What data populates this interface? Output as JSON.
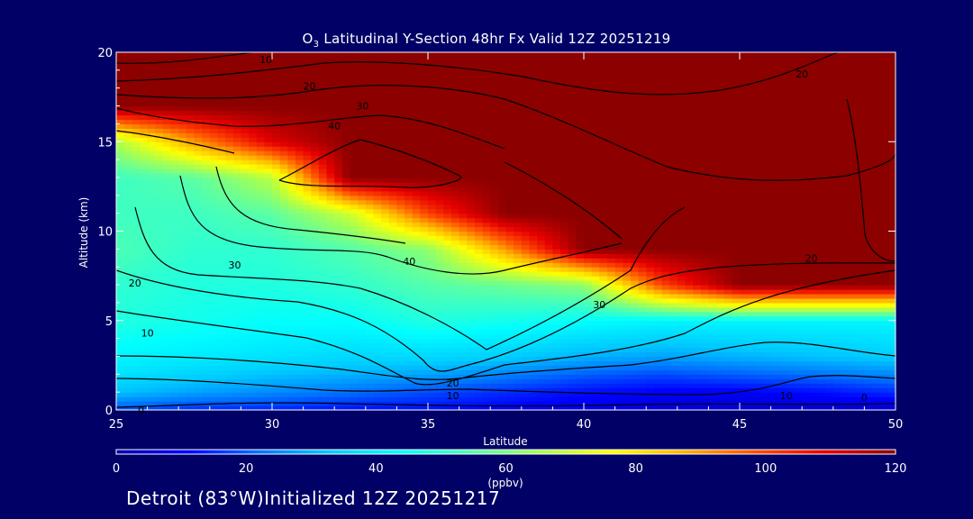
{
  "title": {
    "prefix": "O",
    "subscript": "3",
    "rest": " Latitudinal Y-Section 48hr  Fx Valid 12Z 20251219"
  },
  "caption": "Detroit (83°W)Initialized 12Z 20251217",
  "chart_data": {
    "type": "heatmap",
    "xlabel": "Latitude",
    "ylabel": "Altitude (km)",
    "xlim": [
      25,
      50
    ],
    "ylim": [
      0,
      20
    ],
    "xticks": [
      "25",
      "30",
      "35",
      "40",
      "45",
      "50"
    ],
    "yticks": [
      "0",
      "5",
      "10",
      "15",
      "20"
    ],
    "colorbar": {
      "label": "(ppbv)",
      "range": [
        0,
        120
      ],
      "ticks": [
        "0",
        "20",
        "40",
        "60",
        "80",
        "100",
        "120"
      ],
      "colors": [
        "#0000aa",
        "#0000ff",
        "#0070ff",
        "#00c8ff",
        "#00ffff",
        "#50ffb0",
        "#a8ff50",
        "#ffff00",
        "#ffb400",
        "#ff5000",
        "#e60000",
        "#8c0000"
      ]
    },
    "background_color": "#000066",
    "field": {
      "x": [
        25,
        27.5,
        30,
        32.5,
        35,
        37.5,
        40,
        42.5,
        45,
        47.5,
        50
      ],
      "y": [
        0,
        1,
        2,
        3,
        5,
        7,
        9,
        11,
        13,
        15,
        17,
        20
      ],
      "z": [
        [
          18,
          15,
          14,
          12,
          12,
          10,
          8,
          6,
          5,
          5,
          5
        ],
        [
          32,
          28,
          25,
          22,
          18,
          15,
          12,
          10,
          10,
          12,
          15
        ],
        [
          38,
          35,
          32,
          30,
          28,
          24,
          20,
          18,
          20,
          22,
          25
        ],
        [
          42,
          40,
          38,
          36,
          36,
          34,
          30,
          28,
          30,
          32,
          34
        ],
        [
          48,
          46,
          44,
          44,
          48,
          46,
          44,
          42,
          42,
          42,
          42
        ],
        [
          50,
          48,
          48,
          50,
          55,
          58,
          62,
          100,
          120,
          120,
          120
        ],
        [
          54,
          50,
          50,
          55,
          62,
          90,
          120,
          120,
          120,
          120,
          120
        ],
        [
          52,
          52,
          56,
          70,
          100,
          120,
          120,
          120,
          120,
          120,
          120
        ],
        [
          52,
          56,
          68,
          120,
          120,
          120,
          120,
          120,
          120,
          120,
          120
        ],
        [
          66,
          90,
          110,
          120,
          120,
          120,
          120,
          120,
          120,
          120,
          120
        ],
        [
          120,
          120,
          120,
          120,
          120,
          120,
          120,
          120,
          120,
          120,
          120
        ],
        [
          120,
          120,
          120,
          120,
          120,
          120,
          120,
          120,
          120,
          120,
          120
        ]
      ]
    },
    "contour_labels": [
      {
        "x": 25.8,
        "y": 0,
        "text": "0"
      },
      {
        "x": 26.0,
        "y": 4.3,
        "text": "10"
      },
      {
        "x": 25.6,
        "y": 7.1,
        "text": "20"
      },
      {
        "x": 28.8,
        "y": 8.1,
        "text": "30"
      },
      {
        "x": 34.4,
        "y": 8.3,
        "text": "40"
      },
      {
        "x": 35.8,
        "y": 1.5,
        "text": "20"
      },
      {
        "x": 35.8,
        "y": 0.8,
        "text": "10"
      },
      {
        "x": 40.5,
        "y": 5.9,
        "text": "30"
      },
      {
        "x": 47.3,
        "y": 8.5,
        "text": "20"
      },
      {
        "x": 46.5,
        "y": 0.8,
        "text": "10"
      },
      {
        "x": 49.0,
        "y": 0.7,
        "text": "0"
      },
      {
        "x": 29.8,
        "y": 19.6,
        "text": "10"
      },
      {
        "x": 31.2,
        "y": 18.1,
        "text": "20"
      },
      {
        "x": 32.9,
        "y": 17.0,
        "text": "30"
      },
      {
        "x": 32.0,
        "y": 15.9,
        "text": "40"
      },
      {
        "x": 47.0,
        "y": 18.8,
        "text": "20"
      }
    ]
  }
}
